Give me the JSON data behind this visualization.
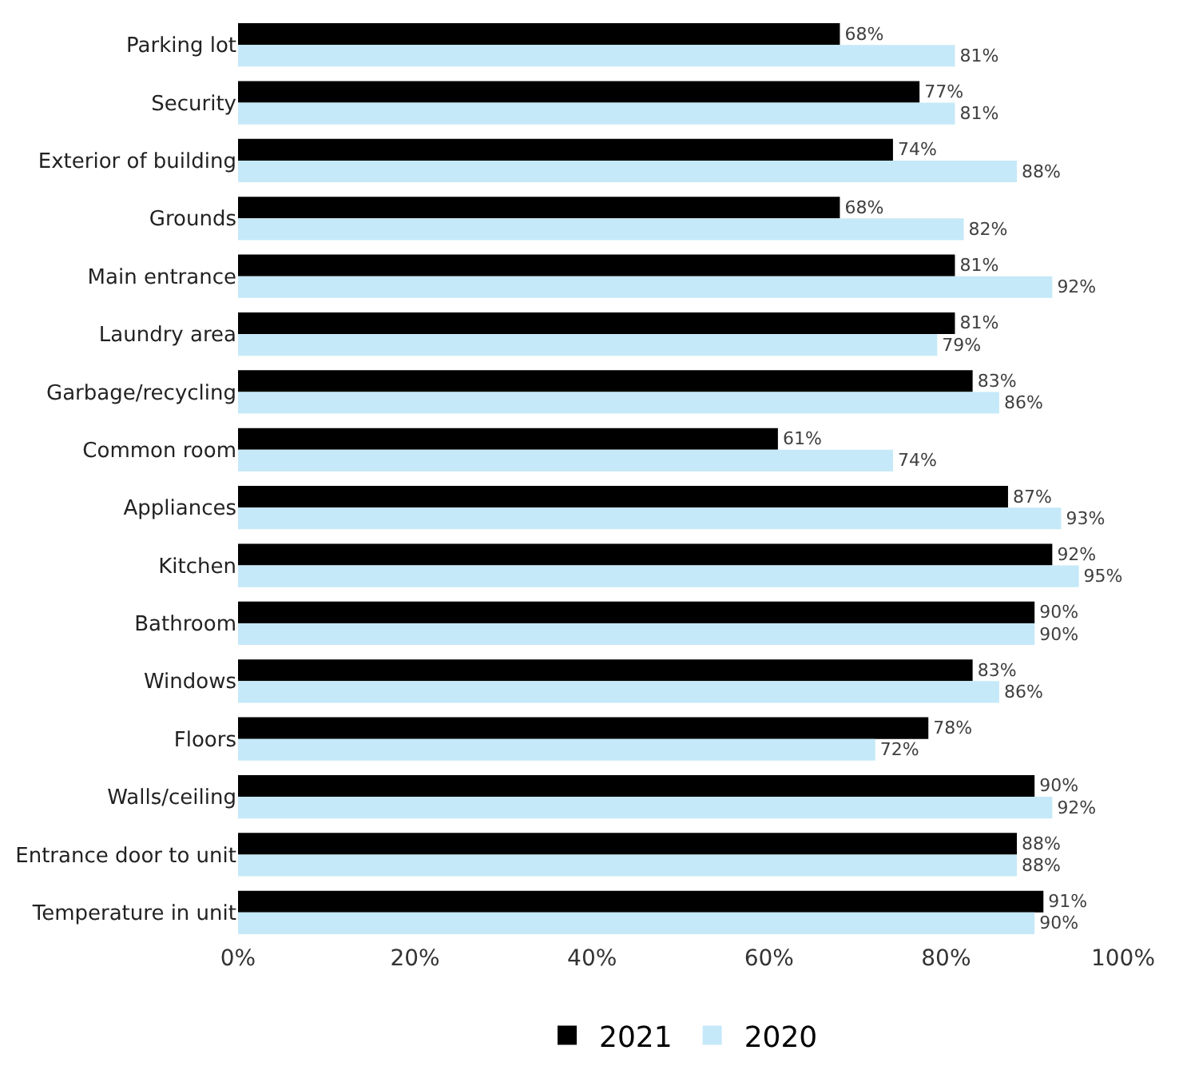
{
  "chart_data": {
    "type": "bar",
    "orientation": "horizontal",
    "categories": [
      "Parking lot",
      "Security",
      "Exterior of building",
      "Grounds",
      "Main entrance",
      "Laundry area",
      "Garbage/recycling",
      "Common room",
      "Appliances",
      "Kitchen",
      "Bathroom",
      "Windows",
      "Floors",
      "Walls/ceiling",
      "Entrance door to unit",
      "Temperature in unit"
    ],
    "series": [
      {
        "name": "2021",
        "color": "#000000",
        "values": [
          68,
          77,
          74,
          68,
          81,
          81,
          83,
          61,
          87,
          92,
          90,
          83,
          78,
          90,
          88,
          91
        ],
        "value_labels": [
          "68%",
          "77%",
          "74%",
          "68%",
          "81%",
          "81%",
          "83%",
          "61%",
          "87%",
          "92%",
          "90%",
          "83%",
          "78%",
          "90%",
          "88%",
          "91%"
        ]
      },
      {
        "name": "2020",
        "color": "#c5e9f8",
        "values": [
          81,
          81,
          88,
          82,
          92,
          79,
          86,
          74,
          93,
          95,
          90,
          86,
          72,
          92,
          88,
          90
        ],
        "value_labels": [
          "81%",
          "81%",
          "88%",
          "82%",
          "92%",
          "79%",
          "86%",
          "74%",
          "93%",
          "95%",
          "90%",
          "86%",
          "72%",
          "92%",
          "88%",
          "90%"
        ]
      }
    ],
    "xlim": [
      0,
      100
    ],
    "xticks": [
      {
        "value": 0,
        "label": "0%"
      },
      {
        "value": 20,
        "label": "20%"
      },
      {
        "value": 40,
        "label": "40%"
      },
      {
        "value": 60,
        "label": "60%"
      },
      {
        "value": 80,
        "label": "80%"
      },
      {
        "value": 100,
        "label": "100%"
      }
    ],
    "legend": "bottom"
  }
}
